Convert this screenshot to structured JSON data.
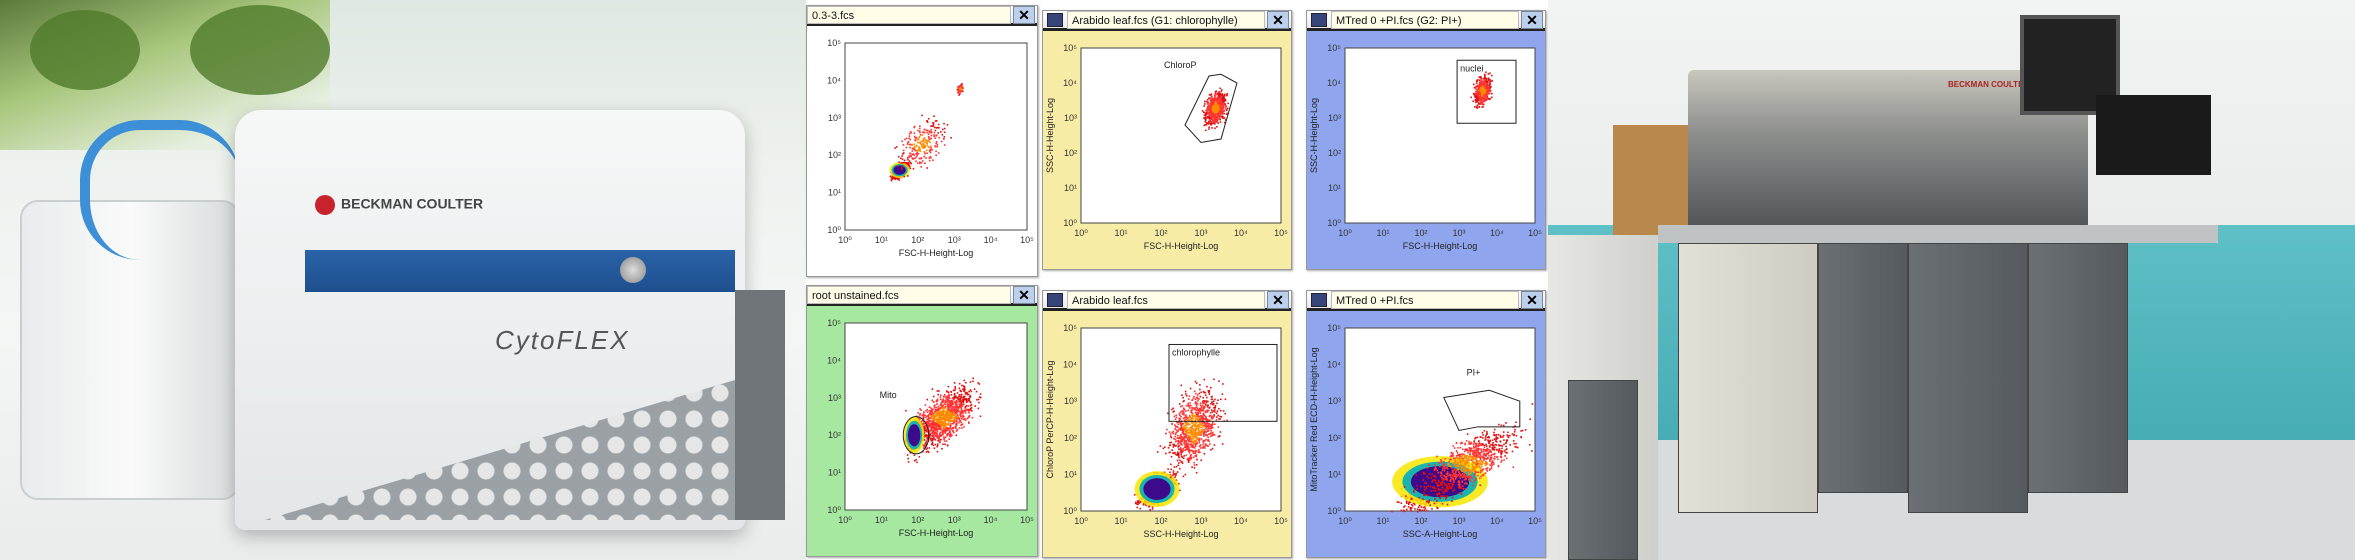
{
  "left_photo": {
    "brand": "BECKMAN COULTER",
    "product": "CytoFLEX"
  },
  "right_photo": {
    "brand": "BECKMAN COULTER"
  },
  "colors": {
    "yellow_panel": "#f7eca6",
    "blue_panel": "#8fa6ee",
    "green_panel": "#a6e8a0",
    "white_panel": "#ffffff",
    "gate": "#222222"
  },
  "chart_data": [
    {
      "type": "scatter",
      "title": "0.3-3.fcs",
      "xlabel": "FSC-H-Height-Log",
      "ylabel": "",
      "xlim": [
        0,
        5
      ],
      "ylim": [
        0,
        5
      ],
      "scale": "log10",
      "ticks": [
        "10⁰",
        "10¹",
        "10²",
        "10³",
        "10⁴",
        "10⁵"
      ],
      "bg": "#ffffff",
      "has_icon": false,
      "clusters": [
        {
          "cx": 1.5,
          "cy": 1.6,
          "sx": 0.2,
          "sy": 0.15,
          "n": 500,
          "core": true
        },
        {
          "cx": 2.1,
          "cy": 2.3,
          "sx": 0.6,
          "sy": 0.6,
          "n": 250
        },
        {
          "cx": 3.15,
          "cy": 3.8,
          "sx": 0.08,
          "sy": 0.12,
          "n": 60
        }
      ],
      "gate": null
    },
    {
      "type": "scatter",
      "title": "Arabido leaf.fcs  (G1: chlorophylle)",
      "xlabel": "FSC-H-Height-Log",
      "ylabel": "SSC-H-Height-Log",
      "xlim": [
        0,
        5
      ],
      "ylim": [
        0,
        5
      ],
      "ticks": [
        "10⁰",
        "10¹",
        "10²",
        "10³",
        "10⁴",
        "10⁵"
      ],
      "bg": "#f7eca6",
      "has_icon": true,
      "clusters": [
        {
          "cx": 3.35,
          "cy": 3.3,
          "sx": 0.25,
          "sy": 0.4,
          "n": 700,
          "core": false
        }
      ],
      "gate": {
        "label": "ChloroP",
        "shape": "polygon",
        "points": [
          [
            2.6,
            2.8
          ],
          [
            3.2,
            4.2
          ],
          [
            3.5,
            4.25
          ],
          [
            3.9,
            4.0
          ],
          [
            3.5,
            2.4
          ],
          [
            3.0,
            2.3
          ]
        ]
      }
    },
    {
      "type": "scatter",
      "title": "MTred 0 +PI.fcs  (G2: PI+)",
      "xlabel": "FSC-H-Height-Log",
      "ylabel": "SSC-H-Height-Log",
      "xlim": [
        0,
        5
      ],
      "ylim": [
        0,
        5
      ],
      "ticks": [
        "10⁰",
        "10¹",
        "10²",
        "10³",
        "10⁴",
        "10⁵"
      ],
      "bg": "#8fa6ee",
      "has_icon": true,
      "clusters": [
        {
          "cx": 3.6,
          "cy": 3.8,
          "sx": 0.2,
          "sy": 0.35,
          "n": 500,
          "core": false
        }
      ],
      "gate": {
        "label": "nuclei",
        "shape": "rect",
        "points": [
          [
            2.95,
            2.85
          ],
          [
            4.5,
            4.65
          ]
        ]
      }
    },
    {
      "type": "scatter",
      "title": "root unstained.fcs",
      "xlabel": "FSC-H-Height-Log",
      "ylabel": "",
      "xlim": [
        0,
        5
      ],
      "ylim": [
        0,
        5
      ],
      "ticks": [
        "10⁰",
        "10¹",
        "10²",
        "10³",
        "10⁴",
        "10⁵"
      ],
      "bg": "#a6e8a0",
      "has_icon": false,
      "clusters": [
        {
          "cx": 2.7,
          "cy": 2.5,
          "sx": 0.8,
          "sy": 0.6,
          "n": 1200,
          "core": false
        },
        {
          "cx": 1.9,
          "cy": 2.0,
          "sx": 0.2,
          "sy": 0.35,
          "n": 300,
          "core": true
        }
      ],
      "gate": {
        "label": "Mito",
        "shape": "ellipse",
        "points": [
          [
            1.95,
            2.0
          ],
          [
            0.35,
            0.5
          ]
        ]
      }
    },
    {
      "type": "scatter",
      "title": "Arabido leaf.fcs",
      "xlabel": "SSC-H-Height-Log",
      "ylabel": "ChloroP PerCP-H-Height-Log",
      "xlim": [
        0,
        5
      ],
      "ylim": [
        0,
        5
      ],
      "ticks": [
        "10⁰",
        "10¹",
        "10²",
        "10³",
        "10⁴",
        "10⁵"
      ],
      "bg": "#f7eca6",
      "has_icon": true,
      "clusters": [
        {
          "cx": 1.9,
          "cy": 0.6,
          "sx": 0.4,
          "sy": 0.35,
          "n": 500,
          "core": true
        },
        {
          "cx": 2.8,
          "cy": 2.3,
          "sx": 0.6,
          "sy": 0.9,
          "n": 900,
          "core": false
        }
      ],
      "gate": {
        "label": "chlorophylle",
        "shape": "rect",
        "points": [
          [
            2.2,
            2.45
          ],
          [
            4.9,
            4.55
          ]
        ]
      }
    },
    {
      "type": "scatter",
      "title": "MTred 0 +PI.fcs",
      "xlabel": "SSC-A-Height-Log",
      "ylabel": "MitoTracker Red ECD-H-Height-Log",
      "xlim": [
        0,
        5
      ],
      "ylim": [
        0,
        5
      ],
      "ticks": [
        "10⁰",
        "10¹",
        "10²",
        "10³",
        "10⁴",
        "10⁵"
      ],
      "bg": "#8fa6ee",
      "has_icon": true,
      "clusters": [
        {
          "cx": 2.5,
          "cy": 0.8,
          "sx": 0.9,
          "sy": 0.5,
          "n": 700,
          "core": true
        },
        {
          "cx": 3.2,
          "cy": 1.3,
          "sx": 1.2,
          "sy": 0.6,
          "n": 900,
          "core": false
        }
      ],
      "gate": {
        "label": "PI+",
        "shape": "polygon",
        "points": [
          [
            2.6,
            3.1
          ],
          [
            3.8,
            3.3
          ],
          [
            4.6,
            3.0
          ],
          [
            4.6,
            2.3
          ],
          [
            3.5,
            2.3
          ],
          [
            3.0,
            2.2
          ]
        ]
      }
    }
  ]
}
